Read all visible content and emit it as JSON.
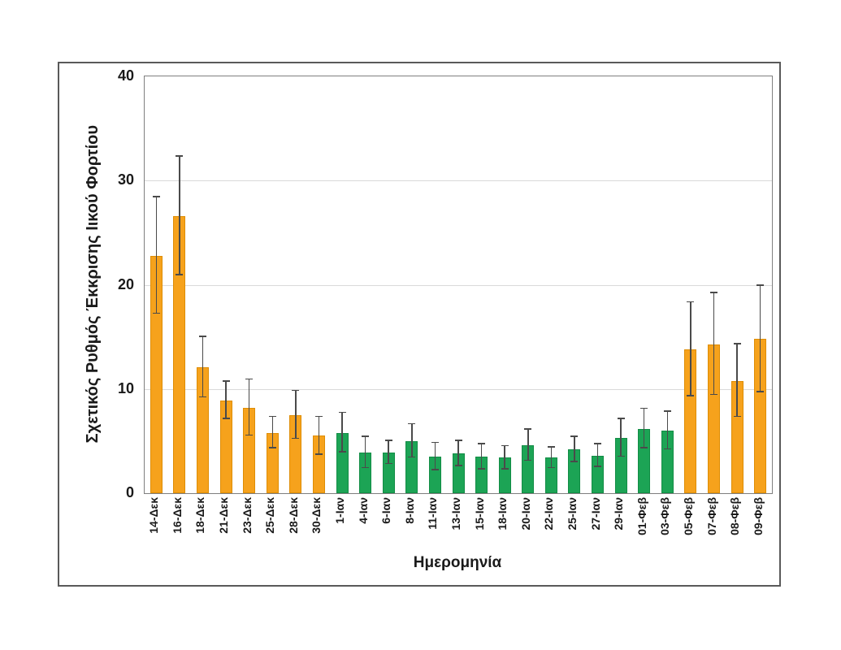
{
  "chart_data": {
    "type": "bar",
    "title": "",
    "xlabel": "Ημερομηνία",
    "ylabel": "Σχετικός Ρυθμός Έκκρισης Ιικού Φορτίου",
    "ylim": [
      0,
      40
    ],
    "yticks": [
      0,
      10,
      20,
      30,
      40
    ],
    "grid": "horizontal-light",
    "legend": "none",
    "error_bars": "symmetric-with-caps",
    "categories": [
      "14-Δεκ",
      "16-Δεκ",
      "18-Δεκ",
      "21-Δεκ",
      "23-Δεκ",
      "25-Δεκ",
      "28-Δεκ",
      "30-Δεκ",
      "1-Ιαν",
      "4-Ιαν",
      "6-Ιαν",
      "8-Ιαν",
      "11-Ιαν",
      "13-Ιαν",
      "15-Ιαν",
      "18-Ιαν",
      "20-Ιαν",
      "22-Ιαν",
      "25-Ιαν",
      "27-Ιαν",
      "29-Ιαν",
      "01-Φεβ",
      "03-Φεβ",
      "05-Φεβ",
      "07-Φεβ",
      "08-Φεβ",
      "09-Φεβ"
    ],
    "values": [
      22.8,
      26.6,
      12.1,
      8.9,
      8.2,
      5.8,
      7.5,
      5.5,
      5.8,
      3.9,
      3.9,
      5.0,
      3.5,
      3.8,
      3.5,
      3.4,
      4.6,
      3.4,
      4.2,
      3.6,
      5.3,
      6.2,
      6.0,
      13.8,
      14.3,
      10.8,
      14.8
    ],
    "errors": [
      5.6,
      5.7,
      2.9,
      1.8,
      2.7,
      1.5,
      2.3,
      1.8,
      1.9,
      1.5,
      1.1,
      1.6,
      1.3,
      1.2,
      1.2,
      1.1,
      1.5,
      1.0,
      1.2,
      1.1,
      1.8,
      1.9,
      1.8,
      4.5,
      4.9,
      3.5,
      5.1
    ],
    "bar_groups": [
      "orange",
      "orange",
      "orange",
      "orange",
      "orange",
      "orange",
      "orange",
      "orange",
      "green",
      "green",
      "green",
      "green",
      "green",
      "green",
      "green",
      "green",
      "green",
      "green",
      "green",
      "green",
      "green",
      "green",
      "green",
      "orange",
      "orange",
      "orange",
      "orange"
    ],
    "colors": {
      "orange": "#f6a21c",
      "green": "#1ca455",
      "gridline": "#d9d9d9",
      "error_bar": "#4a4a4a",
      "plot_border": "#7f7f7f",
      "figure_border": "#595959"
    }
  }
}
